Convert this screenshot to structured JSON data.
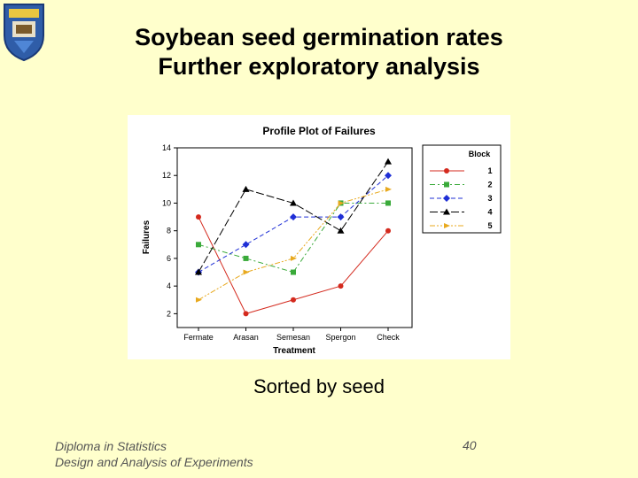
{
  "slide": {
    "title_line1": "Soybean seed germination rates",
    "title_line2": "Further exploratory analysis",
    "caption": "Sorted by seed",
    "footer_line1": "Diploma in Statistics",
    "footer_line2": "Design and Analysis of Experiments",
    "page_number": "40"
  },
  "colors": {
    "background": "#ffffcc",
    "series": [
      "#d42a1e",
      "#3aaa3a",
      "#1f2fd6",
      "#000000",
      "#e8a91e"
    ]
  },
  "chart_data": {
    "type": "line",
    "title": "Profile Plot of Failures",
    "xlabel": "Treatment",
    "ylabel": "Failures",
    "categories": [
      "Fermate",
      "Arasan",
      "Semesan",
      "Spergon",
      "Check"
    ],
    "ylim": [
      1,
      14
    ],
    "yticks": [
      "2",
      "4",
      "6",
      "8",
      "10",
      "12",
      "14"
    ],
    "legend_title": "Block",
    "legend_position": "right",
    "grid": false,
    "series": [
      {
        "name": "1",
        "values": [
          9,
          2,
          3,
          4,
          8
        ],
        "marker": "circle",
        "dash": "solid"
      },
      {
        "name": "2",
        "values": [
          7,
          6,
          5,
          10,
          10
        ],
        "marker": "square",
        "dash": "dash-dot"
      },
      {
        "name": "3",
        "values": [
          5,
          7,
          9,
          9,
          12
        ],
        "marker": "diamond",
        "dash": "dash"
      },
      {
        "name": "4",
        "values": [
          5,
          11,
          10,
          8,
          13
        ],
        "marker": "triangle",
        "dash": "long-dash"
      },
      {
        "name": "5",
        "values": [
          3,
          5,
          6,
          10,
          11
        ],
        "marker": "arrow",
        "dash": "dash-dot-dot"
      }
    ]
  }
}
